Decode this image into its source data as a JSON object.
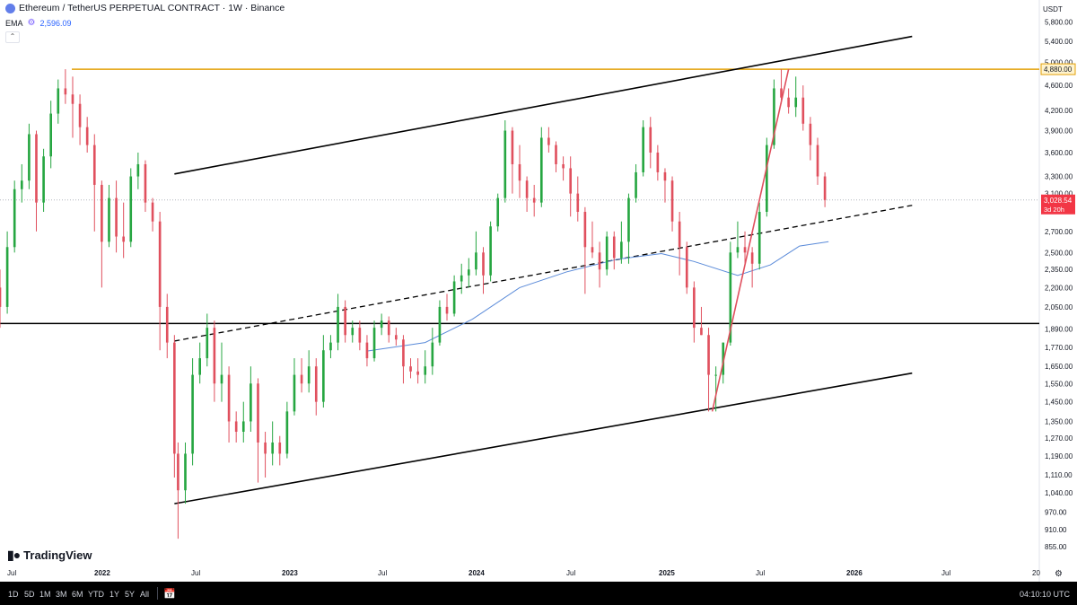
{
  "header": {
    "title": "Ethereum / TetherUS PERPETUAL CONTRACT · 1W · Binance"
  },
  "indicator": {
    "name": "EMA",
    "value": "2,596.09"
  },
  "currency": "USDT",
  "branding": "TradingView",
  "toolbar": {
    "timeframes": [
      "1D",
      "5D",
      "1M",
      "3M",
      "6M",
      "YTD",
      "1Y",
      "5Y",
      "All"
    ],
    "clock": "04:10:10 UTC"
  },
  "colors": {
    "up": "#26a641",
    "down": "#e0505e",
    "ema": "#5b8bd9",
    "resistance": "#e3a008",
    "channel": "#000000",
    "trendline": "#e0505e",
    "price_badge": "#f23645"
  },
  "chart_data": {
    "type": "candlestick",
    "title": "Ethereum / TetherUS PERPETUAL CONTRACT · 1W · Binance",
    "timeframe": "1W",
    "x_tick_labels": [
      "Jul",
      "2022",
      "Jul",
      "2023",
      "Jul",
      "2024",
      "Jul",
      "2025",
      "Jul",
      "2026",
      "Jul",
      "20"
    ],
    "y_tick_labels": [
      "5,800.00",
      "5,400.00",
      "4,600.00",
      "4,200.00",
      "3,900.00",
      "3,600.00",
      "3,300.00",
      "2,700.00",
      "2,500.00",
      "2,350.00",
      "2,200.00",
      "2,050.00",
      "1,890.00",
      "1,770.00",
      "1,650.00",
      "1,550.00",
      "1,450.00",
      "1,350.00",
      "1,270.00",
      "1,190.00",
      "1,110.00",
      "1,040.00",
      "970.00",
      "910.00",
      "855.00"
    ],
    "y_tick_values": [
      5800,
      5400,
      4600,
      4200,
      3900,
      3600,
      3300,
      2700,
      2500,
      2350,
      2200,
      2050,
      1890,
      1770,
      1650,
      1550,
      1450,
      1350,
      1270,
      1190,
      1110,
      1040,
      970,
      910,
      855
    ],
    "price_labels": [
      {
        "text": "5,000.00",
        "value": 5000
      },
      {
        "text": "3,100.00",
        "value": 3100
      }
    ],
    "y_scale": "log",
    "ylim": [
      830,
      6000
    ],
    "xlim": [
      "2021-07-05",
      "2026-12-28"
    ],
    "last_price": {
      "value": 3028.54,
      "label": "3,028.54",
      "countdown": "3d 20h"
    },
    "resistance": {
      "value": 4880,
      "label": "4,880.00"
    },
    "ema_curve": [
      [
        "2023-06-12",
        1745
      ],
      [
        "2023-10-02",
        1800
      ],
      [
        "2024-01-01",
        1960
      ],
      [
        "2024-04-01",
        2200
      ],
      [
        "2024-07-01",
        2330
      ],
      [
        "2024-10-07",
        2440
      ],
      [
        "2024-12-30",
        2490
      ],
      [
        "2025-03-03",
        2420
      ],
      [
        "2025-05-26",
        2300
      ],
      [
        "2025-07-28",
        2390
      ],
      [
        "2025-09-22",
        2560
      ],
      [
        "2025-11-17",
        2600
      ]
    ],
    "horizontal_line": {
      "value": 1930
    },
    "channel_upper": [
      [
        "2022-06-06",
        3330
      ],
      [
        "2026-04-27",
        5500
      ]
    ],
    "channel_mid": [
      [
        "2022-06-06",
        1810
      ],
      [
        "2026-04-27",
        2970
      ]
    ],
    "channel_lower": [
      [
        "2022-06-06",
        1000
      ],
      [
        "2026-04-27",
        1610
      ]
    ],
    "trendline": [
      [
        "2025-04-07",
        1400
      ],
      [
        "2025-09-01",
        4880
      ]
    ],
    "candles": [
      [
        "2021-07-05",
        2200,
        2350,
        1900,
        2050
      ],
      [
        "2021-07-19",
        2050,
        2700,
        2000,
        2550
      ],
      [
        "2021-08-02",
        2550,
        3250,
        2500,
        3150
      ],
      [
        "2021-08-16",
        3150,
        3450,
        3000,
        3250
      ],
      [
        "2021-08-30",
        3250,
        4000,
        3150,
        3850
      ],
      [
        "2021-09-13",
        3850,
        3900,
        2700,
        3000
      ],
      [
        "2021-09-27",
        3000,
        3650,
        2900,
        3550
      ],
      [
        "2021-10-11",
        3550,
        4350,
        3400,
        4150
      ],
      [
        "2021-10-25",
        4150,
        4700,
        4000,
        4550
      ],
      [
        "2021-11-08",
        4550,
        4880,
        4300,
        4450
      ],
      [
        "2021-11-22",
        4450,
        4750,
        3800,
        4300
      ],
      [
        "2021-12-06",
        4300,
        4450,
        3700,
        3950
      ],
      [
        "2021-12-20",
        3950,
        4100,
        3600,
        3700
      ],
      [
        "2022-01-03",
        3700,
        3850,
        2700,
        3200
      ],
      [
        "2022-01-17",
        3200,
        3250,
        2200,
        2600
      ],
      [
        "2022-01-31",
        2600,
        3200,
        2550,
        3050
      ],
      [
        "2022-02-14",
        3050,
        3250,
        2500,
        2650
      ],
      [
        "2022-02-28",
        2650,
        3000,
        2450,
        2600
      ],
      [
        "2022-03-14",
        2600,
        3400,
        2550,
        3300
      ],
      [
        "2022-03-28",
        3300,
        3600,
        3150,
        3450
      ],
      [
        "2022-04-11",
        3450,
        3500,
        2900,
        3000
      ],
      [
        "2022-04-25",
        3000,
        3050,
        2700,
        2800
      ],
      [
        "2022-05-09",
        2800,
        2900,
        1750,
        2050
      ],
      [
        "2022-05-23",
        2050,
        2150,
        1700,
        1800
      ],
      [
        "2022-06-06",
        1800,
        1850,
        1100,
        1200
      ],
      [
        "2022-06-13",
        1200,
        1250,
        880,
        1050
      ],
      [
        "2022-06-27",
        1050,
        1250,
        1000,
        1200
      ],
      [
        "2022-07-11",
        1200,
        1700,
        1150,
        1600
      ],
      [
        "2022-07-25",
        1600,
        1800,
        1550,
        1700
      ],
      [
        "2022-08-08",
        1700,
        2000,
        1650,
        1900
      ],
      [
        "2022-08-22",
        1900,
        1950,
        1450,
        1550
      ],
      [
        "2022-09-05",
        1550,
        1800,
        1450,
        1600
      ],
      [
        "2022-09-19",
        1600,
        1650,
        1250,
        1350
      ],
      [
        "2022-10-03",
        1350,
        1400,
        1250,
        1300
      ],
      [
        "2022-10-17",
        1300,
        1450,
        1250,
        1350
      ],
      [
        "2022-10-31",
        1350,
        1650,
        1300,
        1550
      ],
      [
        "2022-11-14",
        1550,
        1580,
        1080,
        1250
      ],
      [
        "2022-11-28",
        1250,
        1300,
        1100,
        1200
      ],
      [
        "2022-12-12",
        1200,
        1350,
        1150,
        1250
      ],
      [
        "2022-12-26",
        1250,
        1280,
        1150,
        1200
      ],
      [
        "2023-01-09",
        1200,
        1450,
        1180,
        1400
      ],
      [
        "2023-01-23",
        1400,
        1700,
        1380,
        1600
      ],
      [
        "2023-02-06",
        1600,
        1700,
        1500,
        1550
      ],
      [
        "2023-02-20",
        1550,
        1750,
        1500,
        1650
      ],
      [
        "2023-03-06",
        1650,
        1700,
        1380,
        1450
      ],
      [
        "2023-03-20",
        1450,
        1850,
        1420,
        1750
      ],
      [
        "2023-04-03",
        1750,
        1850,
        1700,
        1800
      ],
      [
        "2023-04-17",
        1800,
        2150,
        1750,
        2050
      ],
      [
        "2023-05-01",
        2050,
        2100,
        1800,
        1850
      ],
      [
        "2023-05-15",
        1850,
        1950,
        1800,
        1900
      ],
      [
        "2023-05-29",
        1900,
        1950,
        1750,
        1800
      ],
      [
        "2023-06-12",
        1800,
        1850,
        1650,
        1700
      ],
      [
        "2023-06-26",
        1700,
        1950,
        1680,
        1900
      ],
      [
        "2023-07-10",
        1900,
        2000,
        1850,
        1950
      ],
      [
        "2023-07-24",
        1950,
        1980,
        1800,
        1850
      ],
      [
        "2023-08-07",
        1850,
        1900,
        1780,
        1820
      ],
      [
        "2023-08-21",
        1820,
        1850,
        1550,
        1650
      ],
      [
        "2023-09-04",
        1650,
        1700,
        1580,
        1620
      ],
      [
        "2023-09-18",
        1620,
        1700,
        1550,
        1600
      ],
      [
        "2023-10-02",
        1600,
        1750,
        1550,
        1650
      ],
      [
        "2023-10-16",
        1650,
        1900,
        1600,
        1800
      ],
      [
        "2023-10-30",
        1800,
        2100,
        1780,
        2050
      ],
      [
        "2023-11-13",
        2050,
        2150,
        1950,
        2000
      ],
      [
        "2023-11-27",
        2000,
        2300,
        1980,
        2250
      ],
      [
        "2023-12-11",
        2250,
        2400,
        2150,
        2300
      ],
      [
        "2023-12-25",
        2300,
        2450,
        2200,
        2350
      ],
      [
        "2024-01-08",
        2350,
        2700,
        2300,
        2500
      ],
      [
        "2024-01-22",
        2500,
        2550,
        2150,
        2300
      ],
      [
        "2024-02-05",
        2300,
        2800,
        2250,
        2750
      ],
      [
        "2024-02-19",
        2750,
        3100,
        2700,
        3050
      ],
      [
        "2024-03-04",
        3050,
        4050,
        3000,
        3900
      ],
      [
        "2024-03-18",
        3900,
        3950,
        3100,
        3450
      ],
      [
        "2024-04-01",
        3450,
        3700,
        3050,
        3250
      ],
      [
        "2024-04-15",
        3250,
        3300,
        2900,
        3050
      ],
      [
        "2024-04-29",
        3050,
        3200,
        2850,
        3000
      ],
      [
        "2024-05-13",
        3000,
        3950,
        2950,
        3800
      ],
      [
        "2024-05-27",
        3800,
        3950,
        3600,
        3700
      ],
      [
        "2024-06-10",
        3700,
        3750,
        3350,
        3450
      ],
      [
        "2024-06-24",
        3450,
        3550,
        3250,
        3400
      ],
      [
        "2024-07-08",
        3400,
        3550,
        2850,
        3100
      ],
      [
        "2024-07-22",
        3100,
        3300,
        2800,
        2900
      ],
      [
        "2024-08-05",
        2900,
        2950,
        2150,
        2550
      ],
      [
        "2024-08-19",
        2550,
        2800,
        2450,
        2500
      ],
      [
        "2024-09-02",
        2500,
        2600,
        2200,
        2350
      ],
      [
        "2024-09-16",
        2350,
        2700,
        2300,
        2650
      ],
      [
        "2024-09-30",
        2650,
        2700,
        2350,
        2450
      ],
      [
        "2024-10-14",
        2450,
        2800,
        2400,
        2600
      ],
      [
        "2024-10-28",
        2600,
        3100,
        2400,
        3050
      ],
      [
        "2024-11-11",
        3050,
        3450,
        3000,
        3350
      ],
      [
        "2024-11-25",
        3350,
        4050,
        3300,
        3950
      ],
      [
        "2024-12-09",
        3950,
        4100,
        3400,
        3600
      ],
      [
        "2024-12-23",
        3600,
        3700,
        3250,
        3350
      ],
      [
        "2025-01-06",
        3350,
        3400,
        3000,
        3250
      ],
      [
        "2025-01-20",
        3250,
        3300,
        2700,
        2800
      ],
      [
        "2025-02-03",
        2800,
        2900,
        2300,
        2550
      ],
      [
        "2025-02-17",
        2550,
        2600,
        2150,
        2200
      ],
      [
        "2025-03-03",
        2200,
        2250,
        1800,
        1900
      ],
      [
        "2025-03-17",
        1900,
        2050,
        1850,
        1850
      ],
      [
        "2025-03-31",
        1850,
        1900,
        1400,
        1600
      ],
      [
        "2025-04-14",
        1600,
        1650,
        1400,
        1600
      ],
      [
        "2025-04-28",
        1600,
        1800,
        1550,
        1800
      ],
      [
        "2025-05-12",
        1800,
        2600,
        1780,
        2500
      ],
      [
        "2025-05-26",
        2500,
        2800,
        2450,
        2550
      ],
      [
        "2025-06-09",
        2550,
        2700,
        2400,
        2500
      ],
      [
        "2025-06-23",
        2500,
        2550,
        2200,
        2400
      ],
      [
        "2025-07-07",
        2400,
        3000,
        2350,
        2900
      ],
      [
        "2025-07-21",
        2900,
        3800,
        2850,
        3700
      ],
      [
        "2025-08-04",
        3700,
        4700,
        3650,
        4550
      ],
      [
        "2025-08-18",
        4550,
        4880,
        4300,
        4400
      ],
      [
        "2025-09-01",
        4400,
        4550,
        4150,
        4250
      ],
      [
        "2025-09-15",
        4250,
        4750,
        4100,
        4400
      ],
      [
        "2025-09-29",
        4400,
        4600,
        3900,
        4000
      ],
      [
        "2025-10-13",
        4000,
        4100,
        3500,
        3700
      ],
      [
        "2025-10-27",
        3700,
        3800,
        3200,
        3300
      ],
      [
        "2025-11-10",
        3300,
        3350,
        2950,
        3028.54
      ]
    ]
  }
}
